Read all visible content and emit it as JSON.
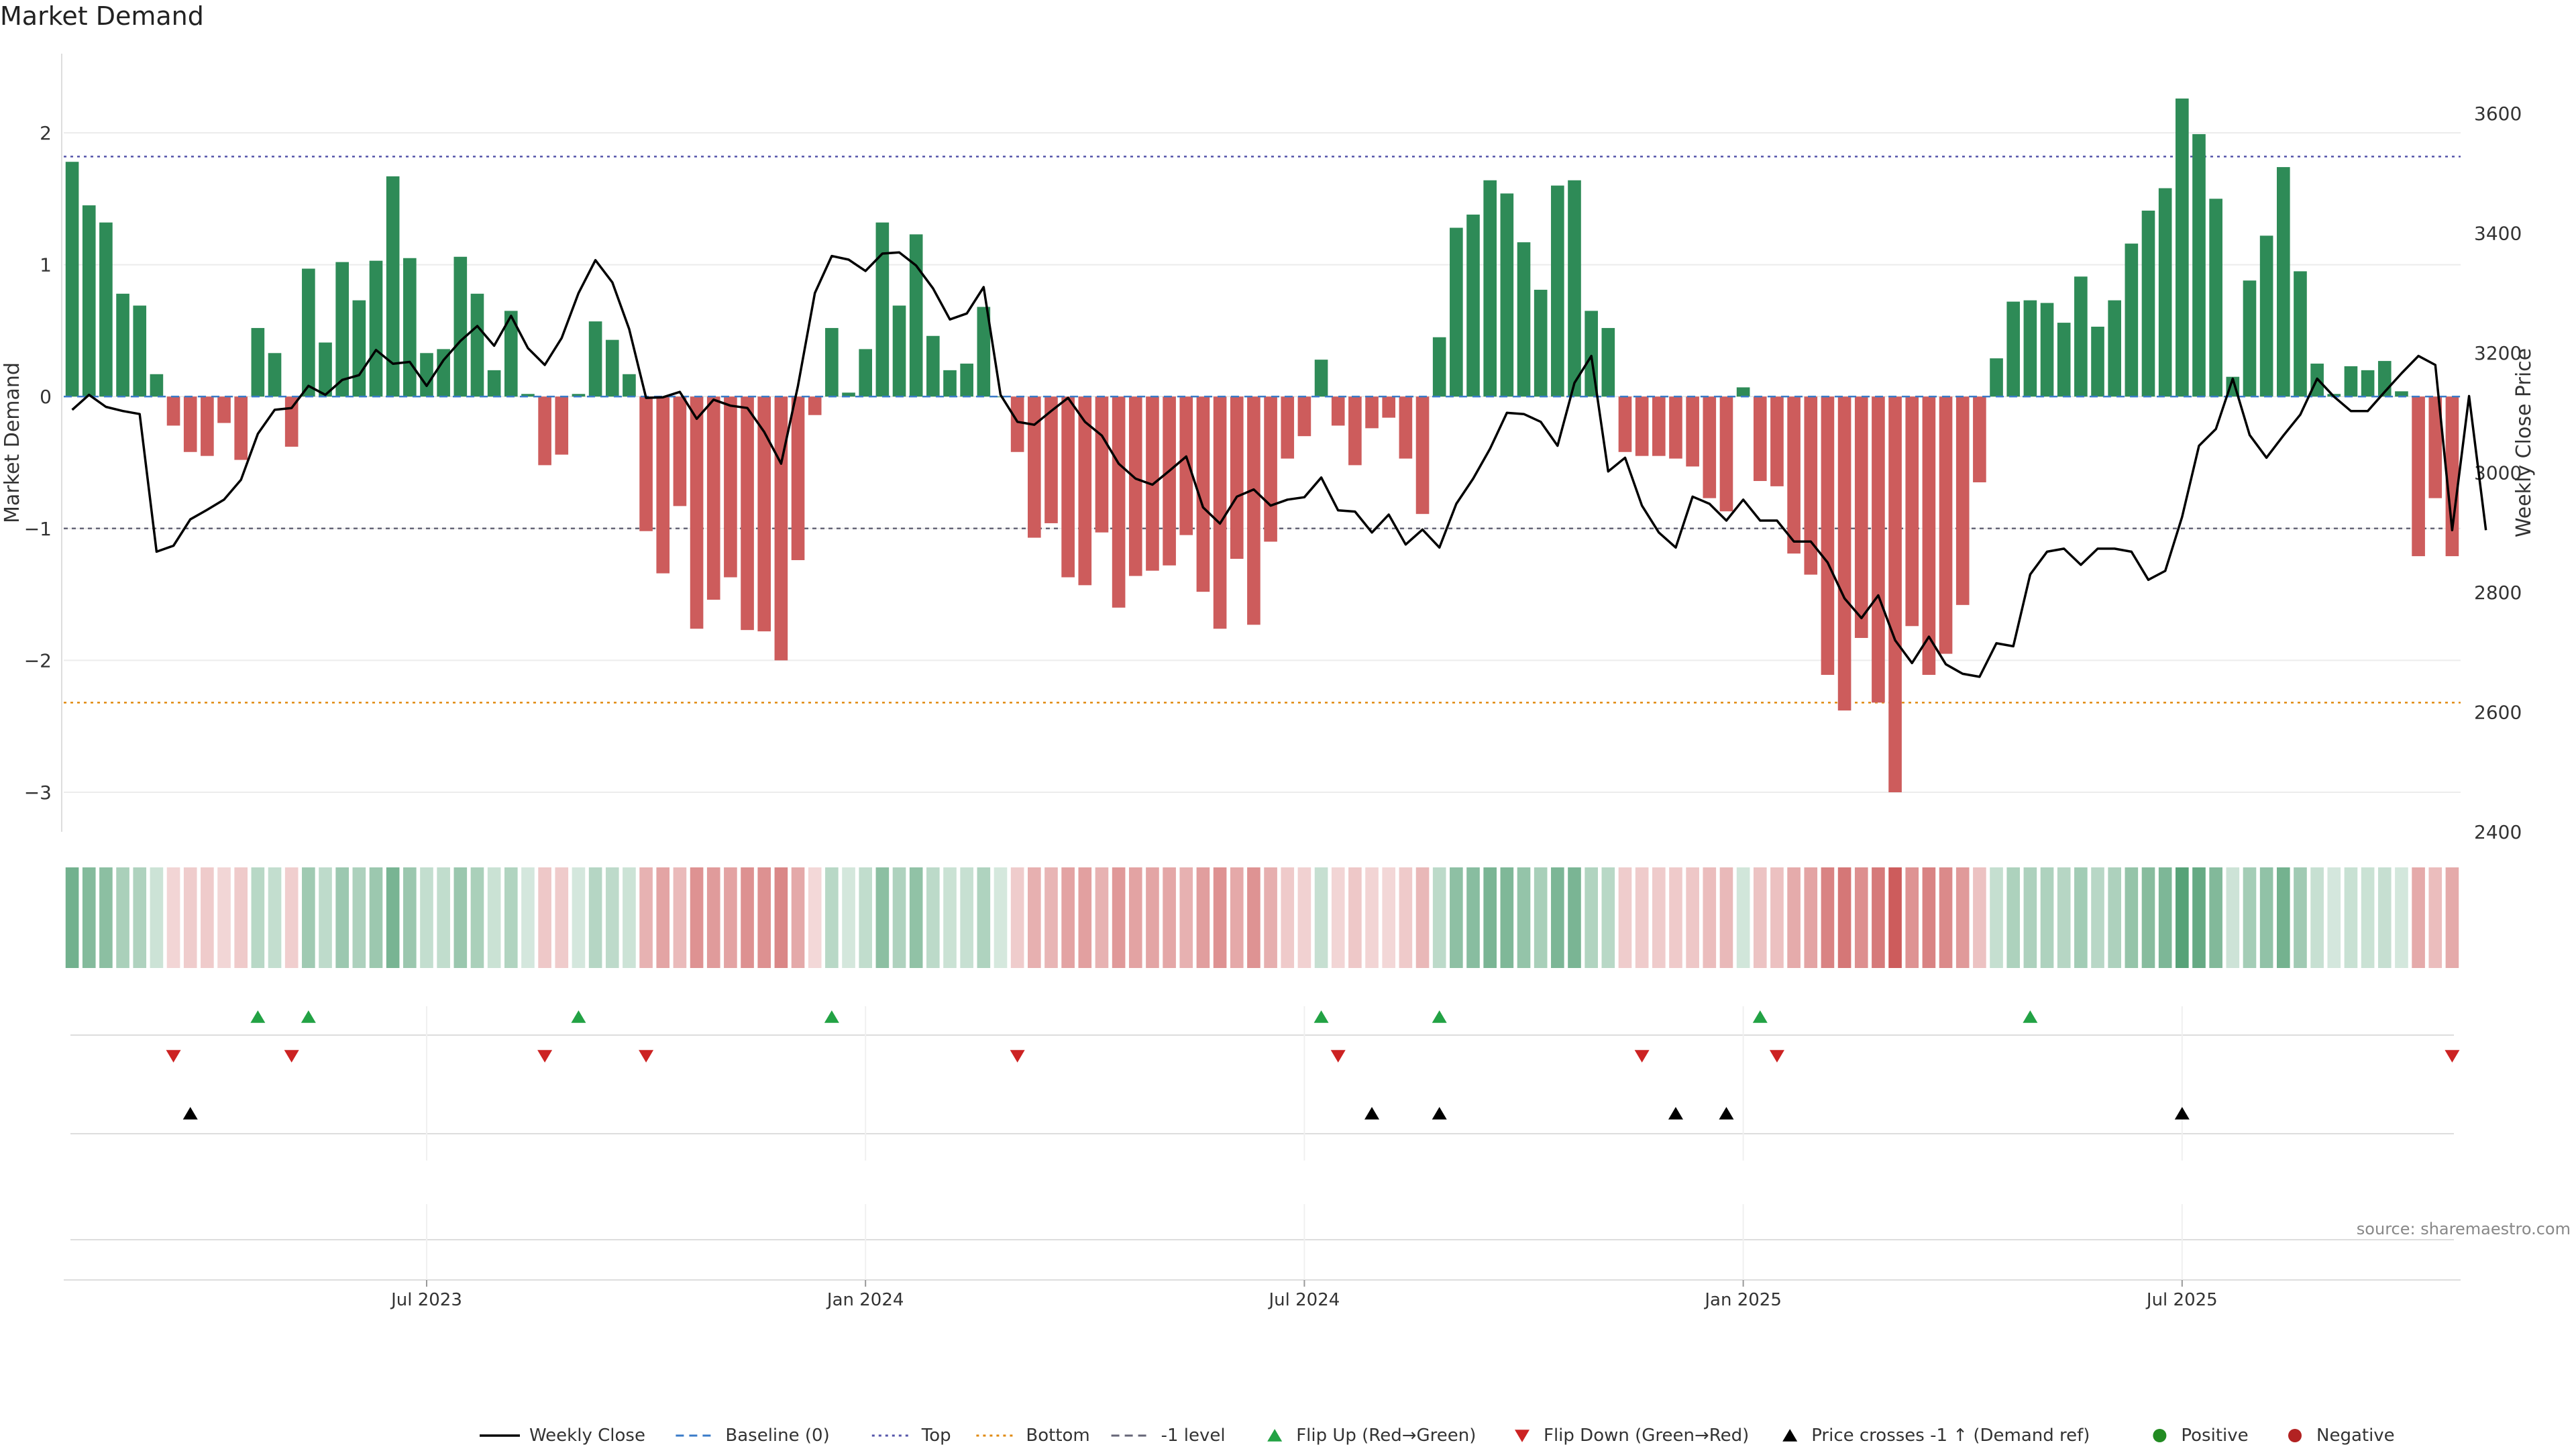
{
  "title": "Market Demand",
  "source": "source: sharemaestro.com",
  "chart_data": {
    "type": "bar",
    "title": "Market Demand",
    "ylabel": "Market Demand",
    "y2label": "Weekly Close Price",
    "ylim": [
      -3.3,
      2.6
    ],
    "y2lim": [
      2400,
      3700
    ],
    "yticks": [
      2,
      1,
      0,
      -1,
      -2,
      -3
    ],
    "ytick_labels": [
      "2",
      "1",
      "0",
      "−1",
      "−2",
      "−3"
    ],
    "y2ticks": [
      3600,
      3400,
      3200,
      3000,
      2800,
      2600,
      2400
    ],
    "xticks": [
      21,
      47,
      73,
      99,
      125
    ],
    "xtick_labels": [
      "Jul 2023",
      "Jan 2024",
      "Jul 2024",
      "Jan 2025",
      "Jul 2025"
    ],
    "reference_lines": {
      "top": 1.82,
      "bottom": -2.32,
      "minus_one": -1,
      "baseline": 0
    },
    "colors": {
      "positive": "#2e8b57",
      "negative": "#cd5c5c",
      "price": "#000000",
      "top": "#5555aa",
      "bottom": "#e08a10",
      "minus_one": "#666677",
      "baseline": "#3a7bc8",
      "flip_up": "#22a244",
      "flip_down": "#cc2222",
      "cross": "#000000"
    },
    "demand": [
      1.78,
      1.45,
      1.32,
      0.78,
      0.69,
      0.17,
      -0.22,
      -0.42,
      -0.45,
      -0.2,
      -0.48,
      0.52,
      0.33,
      -0.38,
      0.97,
      0.41,
      1.02,
      0.73,
      1.03,
      1.67,
      1.05,
      0.33,
      0.36,
      1.06,
      0.78,
      0.2,
      0.65,
      0.02,
      -0.52,
      -0.44,
      0.02,
      0.57,
      0.43,
      0.17,
      -1.02,
      -1.34,
      -0.83,
      -1.76,
      -1.54,
      -1.37,
      -1.77,
      -1.78,
      -2.0,
      -1.24,
      -0.14,
      0.52,
      0.03,
      0.36,
      1.32,
      0.69,
      1.23,
      0.46,
      0.2,
      0.25,
      0.68,
      0.0,
      -0.42,
      -1.07,
      -0.96,
      -1.37,
      -1.43,
      -1.03,
      -1.6,
      -1.36,
      -1.32,
      -1.28,
      -1.05,
      -1.48,
      -1.76,
      -1.23,
      -1.73,
      -1.1,
      -0.47,
      -0.3,
      0.28,
      -0.22,
      -0.52,
      -0.24,
      -0.16,
      -0.47,
      -0.89,
      0.45,
      1.28,
      1.38,
      1.64,
      1.54,
      1.17,
      0.81,
      1.6,
      1.64,
      0.65,
      0.52,
      -0.42,
      -0.45,
      -0.45,
      -0.47,
      -0.53,
      -0.77,
      -0.87,
      0.07,
      -0.64,
      -0.68,
      -1.19,
      -1.35,
      -2.11,
      -2.38,
      -1.83,
      -2.32,
      -3.0,
      -1.74,
      -2.11,
      -1.95,
      -1.58,
      -0.65,
      0.29,
      0.72,
      0.73,
      0.71,
      0.56,
      0.91,
      0.53,
      0.73,
      1.16,
      1.41,
      1.58,
      2.26,
      1.99,
      1.5,
      0.15,
      0.88,
      1.22,
      1.74,
      0.95,
      0.25,
      0.02,
      0.23,
      0.2,
      0.27,
      0.04,
      -1.21,
      -0.77,
      -1.21
    ],
    "price": [
      3105,
      3130,
      3110,
      3103,
      3098,
      2868,
      2878,
      2922,
      2938,
      2955,
      2988,
      3065,
      3105,
      3108,
      3145,
      3130,
      3155,
      3163,
      3205,
      3182,
      3185,
      3145,
      3188,
      3220,
      3245,
      3212,
      3262,
      3208,
      3180,
      3225,
      3300,
      3355,
      3318,
      3240,
      3125,
      3126,
      3135,
      3090,
      3122,
      3112,
      3108,
      3068,
      3015,
      3145,
      3300,
      3362,
      3356,
      3337,
      3366,
      3368,
      3346,
      3308,
      3256,
      3266,
      3310,
      3130,
      3085,
      3080,
      3103,
      3125,
      3085,
      3062,
      3015,
      2990,
      2980,
      3003,
      3027,
      2942,
      2915,
      2960,
      2972,
      2945,
      2955,
      2959,
      2992,
      2937,
      2935,
      2900,
      2930,
      2880,
      2905,
      2875,
      2948,
      2990,
      3040,
      3100,
      3098,
      3085,
      3045,
      3150,
      3195,
      3002,
      3025,
      2945,
      2900,
      2875,
      2960,
      2948,
      2920,
      2955,
      2920,
      2920,
      2885,
      2885,
      2850,
      2790,
      2757,
      2795,
      2720,
      2682,
      2726,
      2680,
      2664,
      2659,
      2715,
      2710,
      2830,
      2868,
      2873,
      2846,
      2873,
      2873,
      2868,
      2821,
      2836,
      2926,
      3045,
      3073,
      3157,
      3063,
      3025,
      3062,
      3097,
      3157,
      3127,
      3103,
      3103,
      3135,
      3166,
      3195,
      3180,
      2904,
      3128,
      2904
    ],
    "flip_up_idx": [
      11,
      14,
      30,
      45,
      74,
      81,
      100,
      116
    ],
    "flip_down_idx": [
      6,
      13,
      28,
      34,
      56,
      75,
      93,
      101,
      141
    ],
    "price_cross_idx": [
      7,
      77,
      81,
      95,
      98,
      125
    ],
    "legend": [
      {
        "label": "Weekly Close",
        "type": "line",
        "color": "#000000"
      },
      {
        "label": "Baseline (0)",
        "type": "dash",
        "color": "#3a7bc8"
      },
      {
        "label": "Top",
        "type": "dot",
        "color": "#5555aa"
      },
      {
        "label": "Bottom",
        "type": "dot",
        "color": "#e08a10"
      },
      {
        "label": "-1 level",
        "type": "dash",
        "color": "#666677"
      },
      {
        "label": "Flip Up (Red→Green)",
        "type": "up",
        "color": "#22a244"
      },
      {
        "label": "Flip Down (Green→Red)",
        "type": "down",
        "color": "#cc2222"
      },
      {
        "label": "Price crosses -1 ↑ (Demand ref)",
        "type": "up",
        "color": "#000000"
      },
      {
        "label": "Positive",
        "type": "dot-marker",
        "color": "#228b22"
      },
      {
        "label": "Negative",
        "type": "dot-marker",
        "color": "#b22222"
      }
    ]
  }
}
